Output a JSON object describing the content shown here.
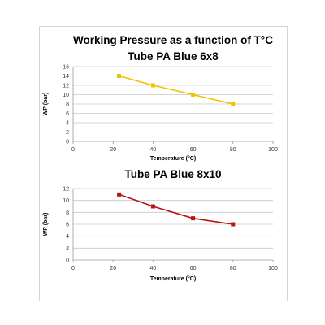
{
  "chart_data": [
    {
      "type": "line",
      "title": "Working Pressure as a function of T°C",
      "subtitle": "Tube PA Blue 6x8",
      "xlabel": "Temperature (°C)",
      "ylabel": "WP (bar)",
      "xlim": [
        0,
        100
      ],
      "ylim": [
        0,
        16
      ],
      "xticks": [
        0,
        20,
        40,
        60,
        80,
        100
      ],
      "yticks": [
        0,
        2,
        4,
        6,
        8,
        10,
        12,
        14,
        16
      ],
      "grid": true,
      "series": [
        {
          "color": "#f2c200",
          "marker": "square",
          "x": [
            23,
            40,
            60,
            80
          ],
          "y": [
            14,
            12,
            10,
            8
          ]
        }
      ]
    },
    {
      "type": "line",
      "title": "Tube PA Blue 8x10",
      "xlabel": "Temperature (°C)",
      "ylabel": "WP (bar)",
      "xlim": [
        0,
        100
      ],
      "ylim": [
        0,
        12
      ],
      "xticks": [
        0,
        20,
        40,
        60,
        80,
        100
      ],
      "yticks": [
        0,
        2,
        4,
        6,
        8,
        10,
        12
      ],
      "grid": true,
      "series": [
        {
          "color": "#b81414",
          "marker": "square",
          "x": [
            23,
            40,
            60,
            80
          ],
          "y": [
            11,
            9,
            7,
            6
          ]
        }
      ]
    }
  ]
}
